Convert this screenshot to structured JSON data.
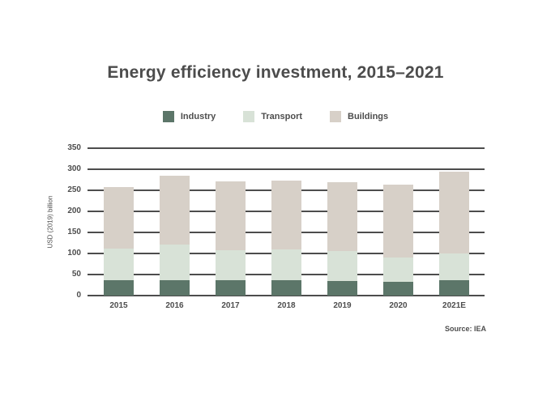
{
  "header": {
    "title": "Energy efficiency investment, 2015–2021"
  },
  "legend": [
    {
      "label": "Industry",
      "color": "#5c7669"
    },
    {
      "label": "Transport",
      "color": "#d8e2d7"
    },
    {
      "label": "Buildings",
      "color": "#d7d0c8"
    }
  ],
  "source_note": "Source: IEA",
  "colors": {
    "gridline": "#4d4d4d",
    "text": "#4d4d4d",
    "background": "#ffffff"
  },
  "chart_data": {
    "type": "bar",
    "stacked": true,
    "title": "Energy efficiency investment, 2015–2021",
    "categories": [
      "2015",
      "2016",
      "2017",
      "2018",
      "2019",
      "2020",
      "2021E"
    ],
    "series": [
      {
        "name": "Industry",
        "color": "#5c7669",
        "values": [
          37,
          36,
          37,
          37,
          35,
          33,
          36
        ]
      },
      {
        "name": "Transport",
        "color": "#d8e2d7",
        "values": [
          75,
          85,
          71,
          73,
          70,
          58,
          64
        ]
      },
      {
        "name": "Buildings",
        "color": "#d7d0c8",
        "values": [
          146,
          163,
          163,
          164,
          164,
          172,
          194
        ]
      }
    ],
    "totals": [
      258,
      284,
      271,
      274,
      269,
      263,
      294
    ],
    "xlabel": "",
    "ylabel": "USD (2019) billion",
    "ylim": [
      0,
      350
    ],
    "ytick_step": 50,
    "grid": true,
    "legend_position": "top"
  }
}
